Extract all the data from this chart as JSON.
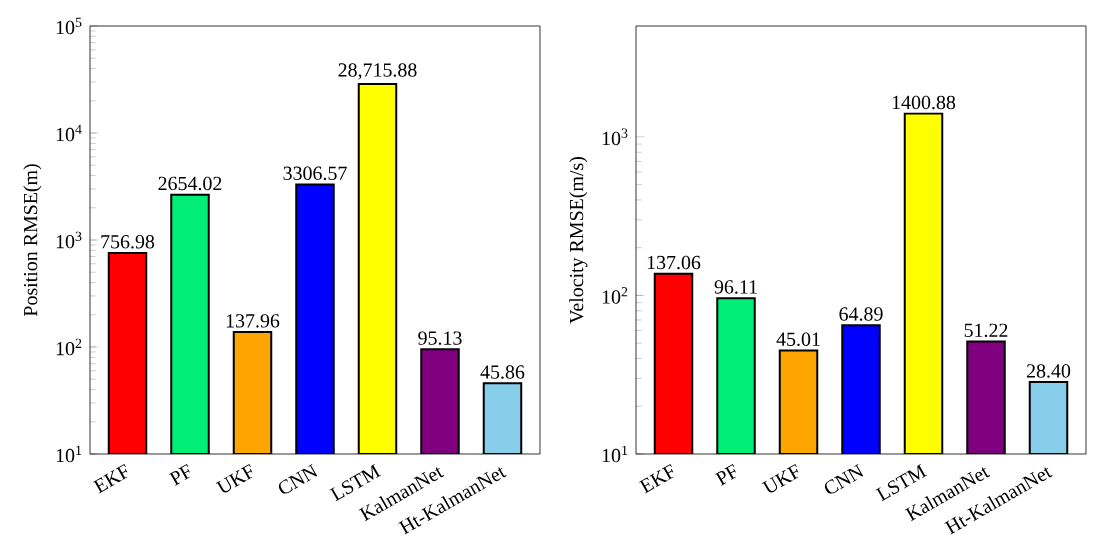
{
  "chart_data": [
    {
      "type": "bar",
      "ylabel": "Position RMSE(m)",
      "log": true,
      "categories": [
        "EKF",
        "PF",
        "UKF",
        "CNN",
        "LSTM",
        "KalmanNet",
        "Ht-KalmanNet"
      ],
      "values": [
        756.98,
        2654.02,
        137.96,
        3306.57,
        28715.88,
        95.13,
        45.86
      ],
      "value_labels": [
        "756.98",
        "2654.02",
        "137.96",
        "3306.57",
        "28,715.88",
        "95.13",
        "45.86"
      ],
      "colors": [
        "#ff0000",
        "#00ee76",
        "#ffa500",
        "#0000ff",
        "#ffff00",
        "#800080",
        "#87ceeb"
      ],
      "ylim": [
        10,
        100000
      ],
      "yticks": [
        {
          "value": 10,
          "label": "10$^{1}$"
        },
        {
          "value": 100,
          "label": "10$^{2}$"
        },
        {
          "value": 1000,
          "label": "10$^{3}$"
        },
        {
          "value": 10000,
          "label": "10$^{4}$"
        },
        {
          "value": 100000,
          "label": "10$^{5}$"
        }
      ]
    },
    {
      "type": "bar",
      "ylabel": "Velocity RMSE(m/s)",
      "log": true,
      "categories": [
        "EKF",
        "PF",
        "UKF",
        "CNN",
        "LSTM",
        "KalmanNet",
        "Ht-KalmanNet"
      ],
      "values": [
        137.06,
        96.11,
        45.01,
        64.89,
        1400.88,
        51.22,
        28.4
      ],
      "value_labels": [
        "137.06",
        "96.11",
        "45.01",
        "64.89",
        "1400.88",
        "51.22",
        "28.40"
      ],
      "colors": [
        "#ff0000",
        "#00ee76",
        "#ffa500",
        "#0000ff",
        "#ffff00",
        "#800080",
        "#87ceeb"
      ],
      "ylim": [
        10,
        5000
      ],
      "yticks": [
        {
          "value": 10,
          "label": "10$^{1}$"
        },
        {
          "value": 100,
          "label": "10$^{2}$"
        },
        {
          "value": 1000,
          "label": "10$^{3}$"
        }
      ]
    }
  ]
}
